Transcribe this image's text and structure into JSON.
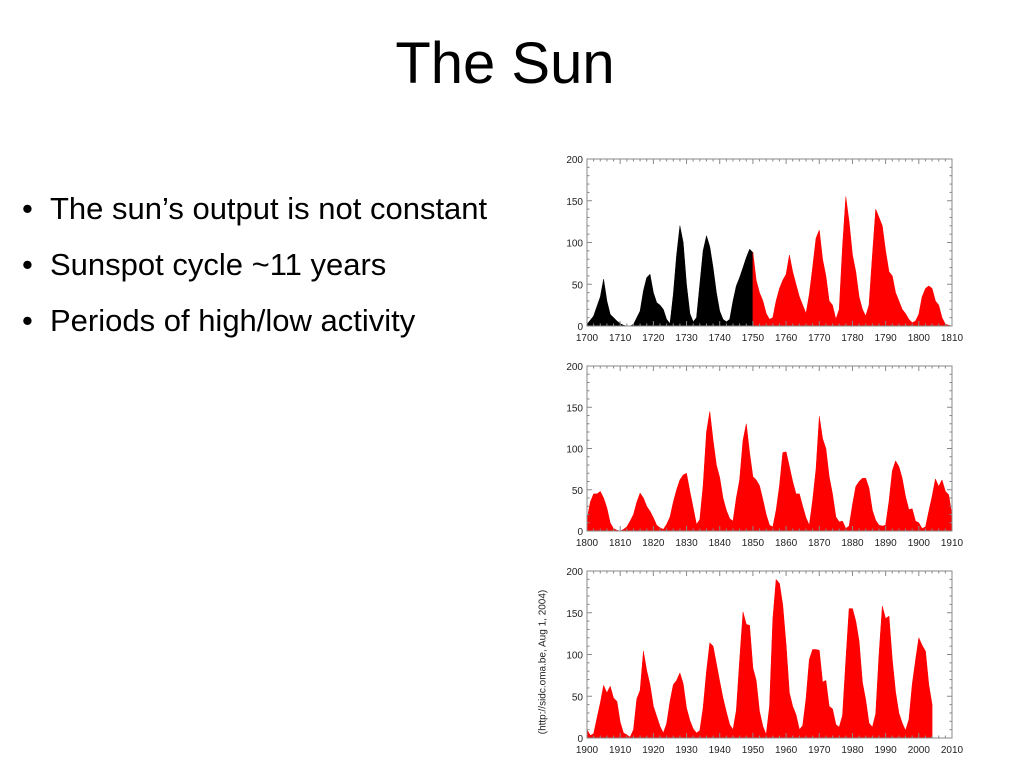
{
  "slide": {
    "title": "The Sun",
    "bullets": [
      "The sun’s output is not constant",
      "Sunspot cycle ~11 years",
      "Periods of high/low activity"
    ],
    "source_note": "(http://sidc.oma.be, Aug  1, 2004)"
  },
  "colors": {
    "early": "#000000",
    "main": "#ff0000",
    "frame": "#888888",
    "background": "#ffffff"
  },
  "chart_data": [
    {
      "type": "area",
      "title": "",
      "xlabel": "",
      "ylabel": "",
      "xlim": [
        1700,
        1810
      ],
      "ylim": [
        0,
        200
      ],
      "x_ticks": [
        1700,
        1710,
        1720,
        1730,
        1740,
        1750,
        1760,
        1770,
        1780,
        1790,
        1800,
        1810
      ],
      "y_ticks": [
        0,
        50,
        100,
        150,
        200
      ],
      "grid": false,
      "series": [
        {
          "color": "#000000",
          "x": [
            1700,
            1702,
            1704,
            1705,
            1706,
            1707,
            1709,
            1710,
            1711,
            1712,
            1713,
            1714,
            1716,
            1717,
            1718,
            1719,
            1720,
            1721,
            1722,
            1723,
            1724,
            1725,
            1726,
            1727,
            1728,
            1729,
            1730,
            1731,
            1732,
            1733,
            1734,
            1735,
            1736,
            1737,
            1738,
            1739,
            1740,
            1741,
            1742,
            1743,
            1744,
            1745,
            1746,
            1747,
            1748,
            1749,
            1750
          ],
          "y": [
            2,
            12,
            35,
            56,
            30,
            14,
            6,
            3,
            1,
            0,
            0,
            2,
            18,
            42,
            58,
            62,
            40,
            28,
            25,
            20,
            8,
            3,
            38,
            85,
            120,
            100,
            50,
            15,
            5,
            10,
            50,
            90,
            108,
            95,
            70,
            40,
            18,
            8,
            5,
            8,
            30,
            48,
            58,
            70,
            82,
            92,
            88
          ]
        },
        {
          "color": "#ff0000",
          "x": [
            1750,
            1751,
            1752,
            1753,
            1754,
            1755,
            1756,
            1757,
            1758,
            1759,
            1760,
            1761,
            1762,
            1763,
            1764,
            1765,
            1766,
            1767,
            1768,
            1769,
            1770,
            1771,
            1772,
            1773,
            1774,
            1775,
            1776,
            1777,
            1778,
            1779,
            1780,
            1781,
            1782,
            1783,
            1784,
            1785,
            1786,
            1787,
            1788,
            1789,
            1790,
            1791,
            1792,
            1793,
            1794,
            1795,
            1796,
            1797,
            1798,
            1799,
            1800,
            1801,
            1802,
            1803,
            1804,
            1805,
            1806,
            1807,
            1808,
            1809,
            1810
          ],
          "y": [
            88,
            55,
            40,
            30,
            15,
            8,
            10,
            30,
            45,
            55,
            62,
            85,
            65,
            50,
            35,
            25,
            15,
            38,
            70,
            105,
            115,
            80,
            60,
            30,
            25,
            8,
            20,
            95,
            155,
            125,
            85,
            65,
            35,
            20,
            12,
            25,
            85,
            140,
            130,
            120,
            90,
            65,
            60,
            40,
            30,
            20,
            15,
            8,
            4,
            6,
            14,
            35,
            45,
            48,
            45,
            30,
            25,
            10,
            2,
            1,
            0
          ]
        }
      ]
    },
    {
      "type": "area",
      "title": "",
      "xlabel": "",
      "ylabel": "",
      "xlim": [
        1800,
        1910
      ],
      "ylim": [
        0,
        200
      ],
      "x_ticks": [
        1800,
        1810,
        1820,
        1830,
        1840,
        1850,
        1860,
        1870,
        1880,
        1890,
        1900,
        1910
      ],
      "y_ticks": [
        0,
        50,
        100,
        150,
        200
      ],
      "grid": false,
      "series": [
        {
          "color": "#ff0000",
          "x": [
            1800,
            1801,
            1802,
            1803,
            1804,
            1805,
            1806,
            1807,
            1808,
            1809,
            1810,
            1811,
            1812,
            1813,
            1814,
            1815,
            1816,
            1817,
            1818,
            1819,
            1820,
            1821,
            1822,
            1823,
            1824,
            1825,
            1826,
            1827,
            1828,
            1829,
            1830,
            1831,
            1832,
            1833,
            1834,
            1835,
            1836,
            1837,
            1838,
            1839,
            1840,
            1841,
            1842,
            1843,
            1844,
            1845,
            1846,
            1847,
            1848,
            1849,
            1850,
            1851,
            1852,
            1853,
            1854,
            1855,
            1856,
            1857,
            1858,
            1859,
            1860,
            1861,
            1862,
            1863,
            1864,
            1865,
            1866,
            1867,
            1868,
            1869,
            1870,
            1871,
            1872,
            1873,
            1874,
            1875,
            1876,
            1877,
            1878,
            1879,
            1880,
            1881,
            1882,
            1883,
            1884,
            1885,
            1886,
            1887,
            1888,
            1889,
            1890,
            1891,
            1892,
            1893,
            1894,
            1895,
            1896,
            1897,
            1898,
            1899,
            1900,
            1901,
            1902,
            1903,
            1904,
            1905,
            1906,
            1907,
            1908,
            1909,
            1910
          ],
          "y": [
            14,
            35,
            45,
            45,
            48,
            40,
            28,
            10,
            3,
            1,
            0,
            2,
            5,
            12,
            20,
            35,
            46,
            40,
            30,
            24,
            16,
            7,
            4,
            2,
            8,
            17,
            35,
            50,
            62,
            68,
            70,
            48,
            28,
            8,
            14,
            55,
            120,
            145,
            110,
            80,
            65,
            40,
            25,
            15,
            12,
            40,
            62,
            110,
            130,
            95,
            66,
            62,
            55,
            38,
            20,
            7,
            5,
            25,
            55,
            95,
            96,
            78,
            60,
            45,
            45,
            30,
            16,
            7,
            37,
            75,
            139,
            112,
            100,
            66,
            45,
            17,
            11,
            12,
            3,
            6,
            32,
            54,
            60,
            64,
            64,
            52,
            25,
            13,
            7,
            6,
            7,
            36,
            73,
            85,
            78,
            64,
            42,
            26,
            27,
            12,
            10,
            3,
            5,
            24,
            42,
            63,
            54,
            62,
            48,
            44,
            19
          ]
        }
      ]
    },
    {
      "type": "area",
      "title": "",
      "xlabel": "",
      "ylabel": "",
      "xlim": [
        1900,
        2010
      ],
      "ylim": [
        0,
        200
      ],
      "x_ticks": [
        1900,
        1910,
        1920,
        1930,
        1940,
        1950,
        1960,
        1970,
        1980,
        1990,
        2000,
        2010
      ],
      "y_ticks": [
        0,
        50,
        100,
        150,
        200
      ],
      "grid": false,
      "series": [
        {
          "color": "#ff0000",
          "x": [
            1900,
            1901,
            1902,
            1903,
            1904,
            1905,
            1906,
            1907,
            1908,
            1909,
            1910,
            1911,
            1912,
            1913,
            1914,
            1915,
            1916,
            1917,
            1918,
            1919,
            1920,
            1921,
            1922,
            1923,
            1924,
            1925,
            1926,
            1927,
            1928,
            1929,
            1930,
            1931,
            1932,
            1933,
            1934,
            1935,
            1936,
            1937,
            1938,
            1939,
            1940,
            1941,
            1942,
            1943,
            1944,
            1945,
            1946,
            1947,
            1948,
            1949,
            1950,
            1951,
            1952,
            1953,
            1954,
            1955,
            1956,
            1957,
            1958,
            1959,
            1960,
            1961,
            1962,
            1963,
            1964,
            1965,
            1966,
            1967,
            1968,
            1969,
            1970,
            1971,
            1972,
            1973,
            1974,
            1975,
            1976,
            1977,
            1978,
            1979,
            1980,
            1981,
            1982,
            1983,
            1984,
            1985,
            1986,
            1987,
            1988,
            1989,
            1990,
            1991,
            1992,
            1993,
            1994,
            1995,
            1996,
            1997,
            1998,
            1999,
            2000,
            2001,
            2002,
            2003,
            2004
          ],
          "y": [
            10,
            3,
            5,
            24,
            42,
            63,
            54,
            62,
            48,
            44,
            19,
            6,
            4,
            1,
            10,
            47,
            57,
            104,
            81,
            64,
            38,
            26,
            14,
            6,
            17,
            44,
            64,
            69,
            78,
            65,
            36,
            21,
            11,
            6,
            9,
            36,
            80,
            114,
            110,
            89,
            68,
            48,
            31,
            16,
            10,
            33,
            93,
            151,
            136,
            135,
            84,
            69,
            32,
            14,
            4,
            38,
            142,
            190,
            185,
            159,
            112,
            54,
            38,
            28,
            10,
            15,
            47,
            94,
            106,
            106,
            105,
            67,
            69,
            38,
            35,
            16,
            13,
            27,
            93,
            155,
            155,
            140,
            116,
            67,
            46,
            18,
            13,
            29,
            100,
            158,
            143,
            146,
            94,
            55,
            30,
            18,
            9,
            22,
            64,
            93,
            120,
            111,
            104,
            64,
            40
          ]
        }
      ]
    }
  ]
}
